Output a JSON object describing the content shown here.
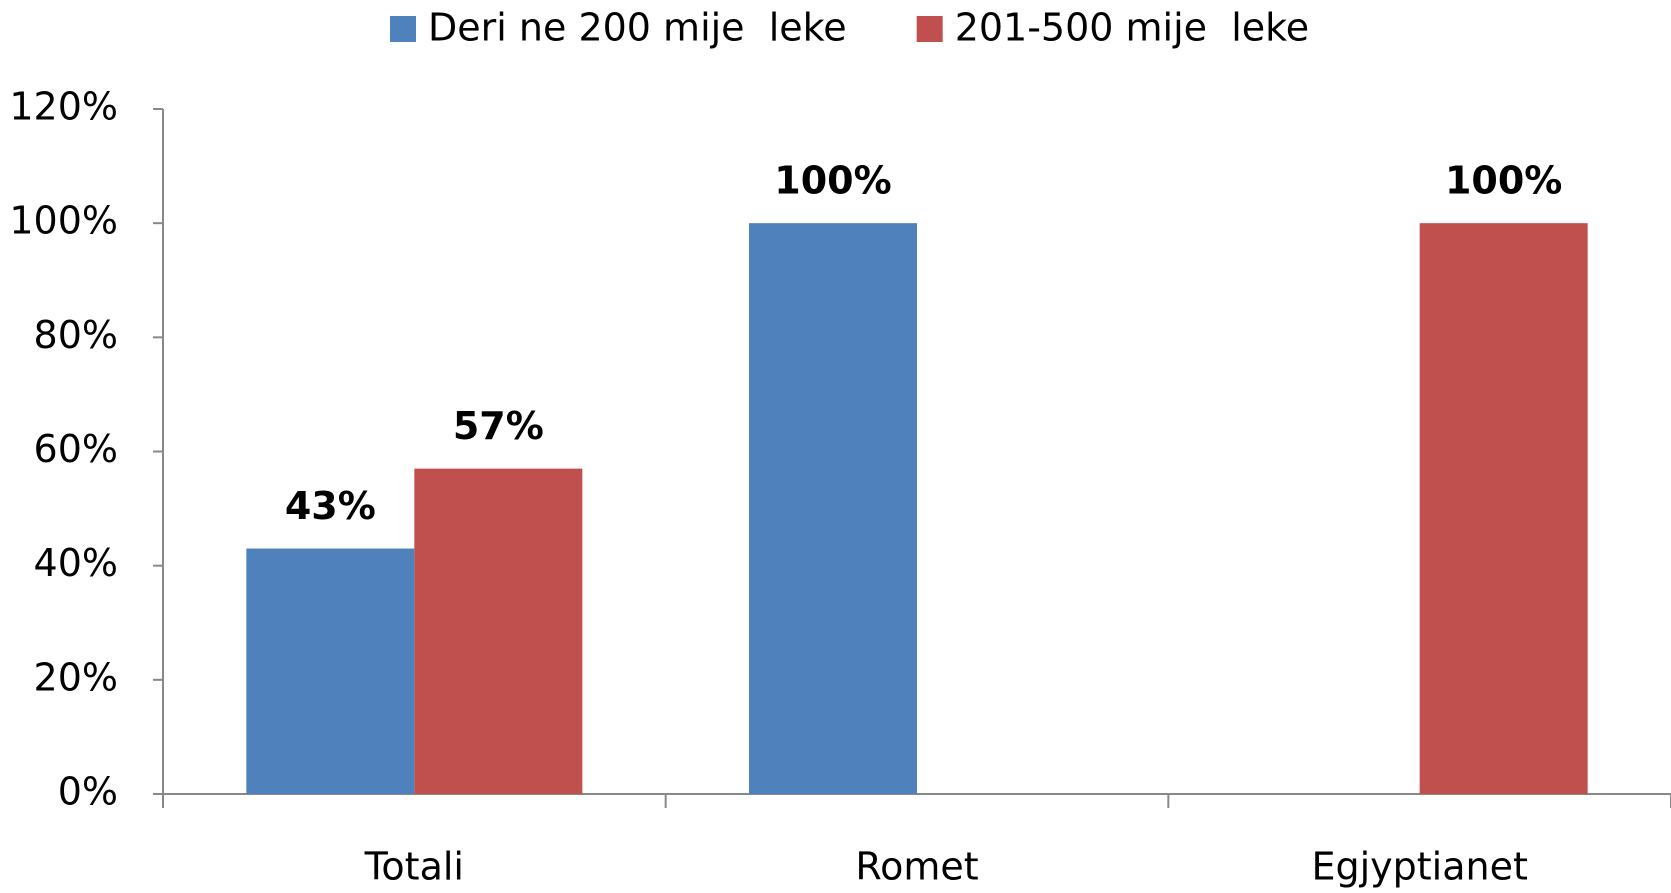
{
  "chart_data": {
    "type": "bar",
    "categories": [
      "Totali",
      "Romet",
      "Egjyptianet"
    ],
    "series": [
      {
        "name": "Deri ne 200 mije  leke",
        "color": "#4f81bd",
        "values": [
          43,
          100,
          null
        ],
        "value_labels": [
          "43%",
          "100%",
          null
        ]
      },
      {
        "name": "201-500 mije  leke",
        "color": "#c0504d",
        "values": [
          57,
          null,
          100
        ],
        "value_labels": [
          "57%",
          null,
          "100%"
        ]
      }
    ],
    "ylim": [
      0,
      120
    ],
    "yticks": [
      {
        "value": 0,
        "label": "0%"
      },
      {
        "value": 20,
        "label": "20%"
      },
      {
        "value": 40,
        "label": "40%"
      },
      {
        "value": 60,
        "label": "60%"
      },
      {
        "value": 80,
        "label": "80%"
      },
      {
        "value": 100,
        "label": "100%"
      },
      {
        "value": 120,
        "label": "120%"
      }
    ],
    "grid": false,
    "legend": "top"
  }
}
